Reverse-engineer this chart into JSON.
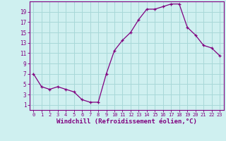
{
  "x": [
    0,
    1,
    2,
    3,
    4,
    5,
    6,
    7,
    8,
    9,
    10,
    11,
    12,
    13,
    14,
    15,
    16,
    17,
    18,
    19,
    20,
    21,
    22,
    23
  ],
  "y": [
    7,
    4.5,
    4,
    4.5,
    4,
    3.5,
    2,
    1.5,
    1.5,
    7,
    11.5,
    13.5,
    15,
    17.5,
    19.5,
    19.5,
    20,
    20.5,
    20.5,
    16,
    14.5,
    12.5,
    12,
    10.5
  ],
  "line_color": "#800080",
  "marker": "+",
  "bg_color": "#cff0f0",
  "grid_color": "#a8d8d8",
  "xlabel": "Windchill (Refroidissement éolien,°C)",
  "xlabel_fontsize": 6.5,
  "xlim": [
    -0.5,
    23.5
  ],
  "ylim": [
    0,
    21
  ],
  "xtick_labels": [
    "0",
    "1",
    "2",
    "3",
    "4",
    "5",
    "6",
    "7",
    "8",
    "9",
    "10",
    "11",
    "12",
    "13",
    "14",
    "15",
    "16",
    "17",
    "18",
    "19",
    "20",
    "21",
    "22",
    "23"
  ],
  "ytick_values": [
    1,
    3,
    5,
    7,
    9,
    11,
    13,
    15,
    17,
    19
  ],
  "spine_color": "#800080",
  "tick_color": "#800080",
  "label_color": "#800080"
}
